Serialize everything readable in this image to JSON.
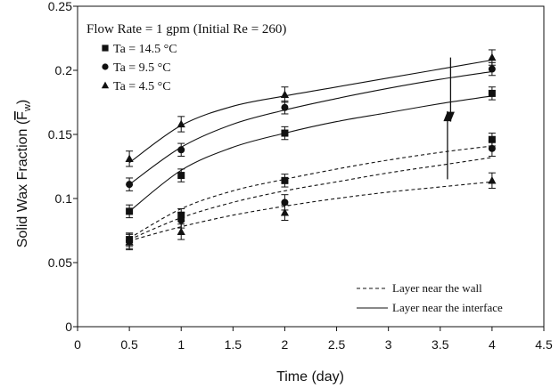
{
  "chart_data": {
    "type": "line",
    "title": "Flow Rate = 1 gpm  (Initial Re = 260)",
    "xlabel": "Time (day)",
    "ylabel_main": "Solid Wax Fraction (",
    "ylabel_symbol": "F",
    "ylabel_sub": "w",
    "ylabel_close": ")",
    "xlim": [
      0,
      4.5
    ],
    "ylim": [
      0,
      0.25
    ],
    "xticks": [
      "0",
      "0.5",
      "1",
      "1.5",
      "2",
      "2.5",
      "3",
      "3.5",
      "4",
      "4.5"
    ],
    "yticks": [
      "0",
      "0.05",
      "0.1",
      "0.15",
      "0.2",
      "0.25"
    ],
    "grid": false,
    "legend_placement": "top-left",
    "series_legend": [
      {
        "label": "Ta = 14.5 °C",
        "marker": "square"
      },
      {
        "label": "Ta = 9.5 °C",
        "marker": "circle"
      },
      {
        "label": "Ta = 4.5 °C",
        "marker": "triangle"
      }
    ],
    "style_legend": [
      {
        "label": "Layer near the wall",
        "style": "dashed"
      },
      {
        "label": "Layer near the interface",
        "style": "solid"
      }
    ],
    "series": [
      {
        "marker": "square",
        "layer": "interface",
        "x": [
          0.5,
          1,
          2,
          4
        ],
        "y": [
          0.09,
          0.118,
          0.151,
          0.182
        ],
        "err": 0.005
      },
      {
        "marker": "circle",
        "layer": "interface",
        "x": [
          0.5,
          1,
          2,
          4
        ],
        "y": [
          0.111,
          0.138,
          0.171,
          0.201
        ],
        "err": 0.005
      },
      {
        "marker": "triangle",
        "layer": "interface",
        "x": [
          0.5,
          1,
          2,
          4
        ],
        "y": [
          0.131,
          0.158,
          0.181,
          0.21
        ],
        "err": 0.006
      },
      {
        "marker": "square",
        "layer": "wall",
        "x": [
          0.5,
          1,
          2,
          4
        ],
        "y": [
          0.068,
          0.087,
          0.114,
          0.146
        ],
        "err": 0.005
      },
      {
        "marker": "circle",
        "layer": "wall",
        "x": [
          0.5,
          1,
          2,
          4
        ],
        "y": [
          0.067,
          0.083,
          0.097,
          0.139
        ],
        "err": 0.006
      },
      {
        "marker": "triangle",
        "layer": "wall",
        "x": [
          0.5,
          1,
          2,
          4
        ],
        "y": [
          0.066,
          0.074,
          0.089,
          0.114
        ],
        "err": 0.006
      }
    ],
    "curves": [
      {
        "style": "solid",
        "x": [
          0.5,
          1,
          1.5,
          2,
          2.5,
          3,
          3.5,
          4
        ],
        "y": [
          0.09,
          0.122,
          0.14,
          0.151,
          0.16,
          0.167,
          0.174,
          0.18
        ]
      },
      {
        "style": "solid",
        "x": [
          0.5,
          1,
          1.5,
          2,
          2.5,
          3,
          3.5,
          4
        ],
        "y": [
          0.111,
          0.14,
          0.158,
          0.169,
          0.178,
          0.186,
          0.193,
          0.199
        ]
      },
      {
        "style": "solid",
        "x": [
          0.5,
          1,
          1.5,
          2,
          2.5,
          3,
          3.5,
          4
        ],
        "y": [
          0.128,
          0.157,
          0.172,
          0.18,
          0.187,
          0.194,
          0.201,
          0.208
        ]
      },
      {
        "style": "dashed",
        "x": [
          0.5,
          1,
          1.5,
          2,
          2.5,
          3,
          3.5,
          4
        ],
        "y": [
          0.069,
          0.092,
          0.106,
          0.115,
          0.123,
          0.13,
          0.136,
          0.141
        ]
      },
      {
        "style": "dashed",
        "x": [
          0.5,
          1,
          1.5,
          2,
          2.5,
          3,
          3.5,
          4
        ],
        "y": [
          0.068,
          0.085,
          0.097,
          0.106,
          0.113,
          0.12,
          0.126,
          0.132
        ]
      },
      {
        "style": "dashed",
        "x": [
          0.5,
          1,
          1.5,
          2,
          2.5,
          3,
          3.5,
          4
        ],
        "y": [
          0.067,
          0.078,
          0.087,
          0.094,
          0.1,
          0.105,
          0.109,
          0.113
        ]
      }
    ],
    "arrows": [
      {
        "direction": "up",
        "x": 3.57,
        "y_from": 0.115,
        "y_to": 0.168
      },
      {
        "direction": "down",
        "x": 3.6,
        "y_from": 0.21,
        "y_to": 0.16
      }
    ]
  }
}
